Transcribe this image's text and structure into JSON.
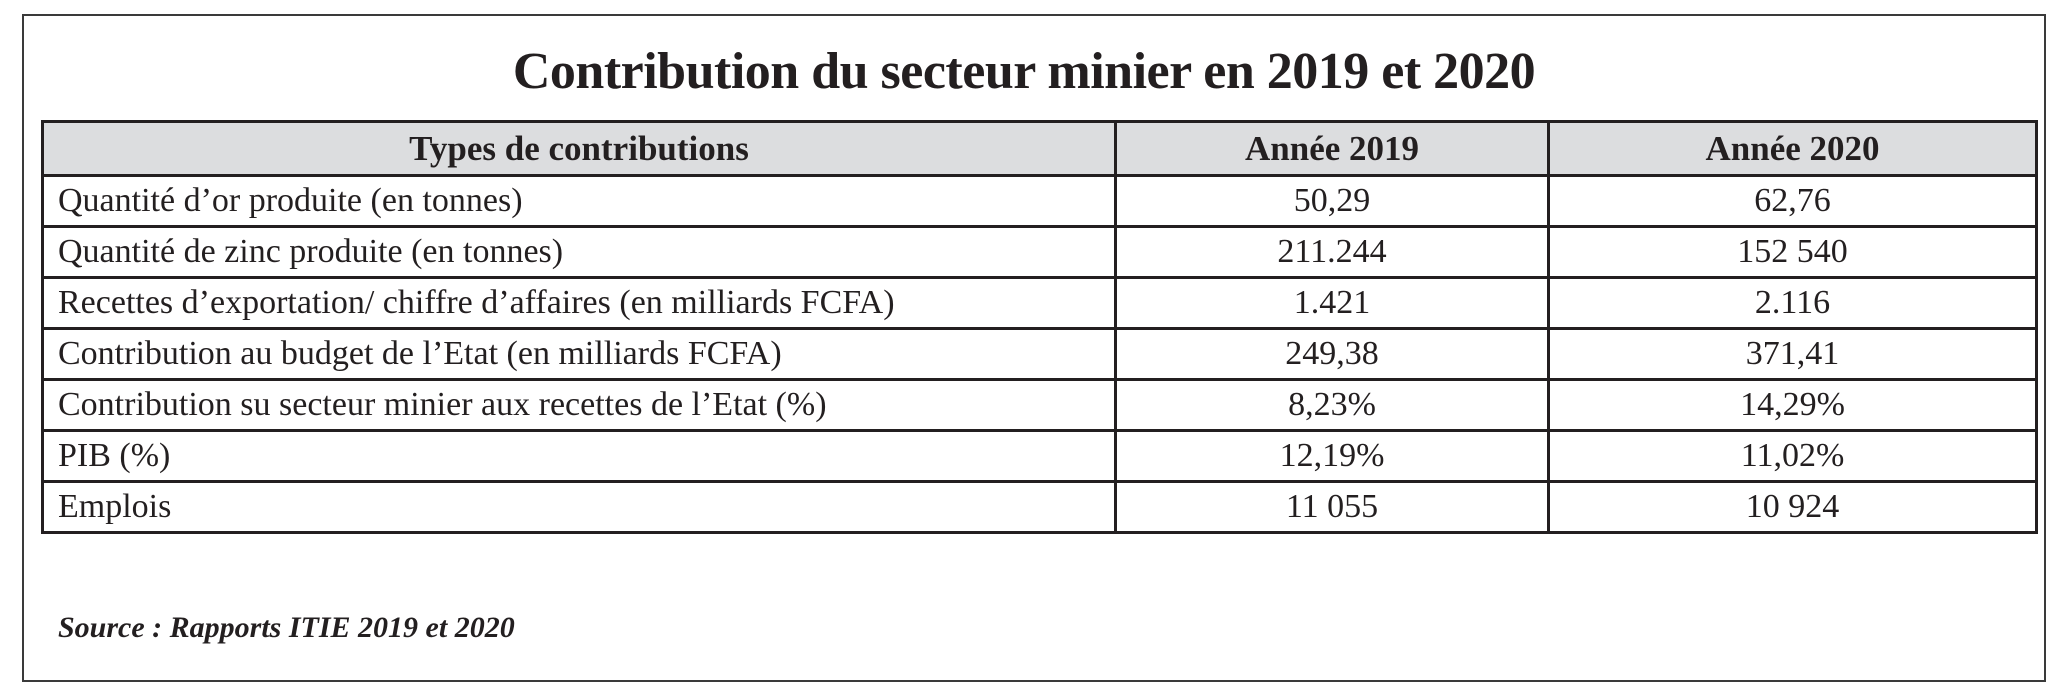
{
  "title": "Contribution du secteur minier en 2019 et 2020",
  "table": {
    "headers": [
      "Types de contributions",
      "Année 2019",
      "Année 2020"
    ],
    "rows": [
      [
        "Quantité d’or produite (en tonnes)",
        "50,29",
        "62,76"
      ],
      [
        "Quantité de zinc produite (en tonnes)",
        "211.244",
        "152 540"
      ],
      [
        "Recettes d’exportation/ chiffre d’affaires (en milliards FCFA)",
        "1.421",
        "2.116"
      ],
      [
        "Contribution au budget de l’Etat (en milliards FCFA)",
        "249,38",
        "371,41"
      ],
      [
        "Contribution su secteur minier aux recettes de l’Etat  (%)",
        "8,23%",
        "14,29%"
      ],
      [
        "PIB (%)",
        "12,19%",
        "11,02%"
      ],
      [
        "Emplois",
        "11 055",
        "10 924"
      ]
    ]
  },
  "source": "Source : Rapports ITIE 2019 et 2020"
}
